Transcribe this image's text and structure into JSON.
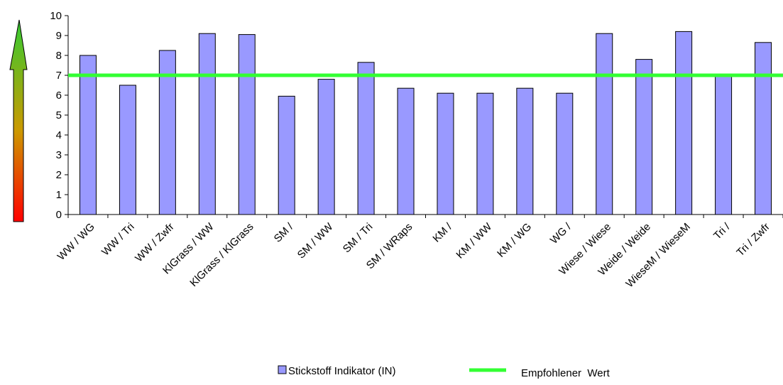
{
  "chart_data": {
    "type": "bar",
    "categories": [
      "WW / WG",
      "WW / Tri",
      "WW / Zwfr",
      "KlGrass / WW",
      "KlGrass / KlGrass",
      "SM /",
      "SM / WW",
      "SM / Tri",
      "SM / WRaps",
      "KM /",
      "KM / WW",
      "KM / WG",
      "WG /",
      "Wiese / Wiese",
      "Weide / Weide",
      "WieseM / WieseM",
      "Tri /",
      "Tri / Zwfr"
    ],
    "series": [
      {
        "name": "Stickstoff Indikator (IN)",
        "values": [
          8.0,
          6.5,
          8.25,
          9.1,
          9.05,
          5.95,
          6.8,
          7.65,
          6.35,
          6.1,
          6.1,
          6.35,
          6.1,
          9.1,
          7.8,
          9.2,
          7.0,
          8.65
        ],
        "color": "#9999ff"
      }
    ],
    "reference_line": {
      "name": "Empfohlener  Wert",
      "value": 7,
      "color": "#33ff33"
    },
    "ylim": [
      0,
      10
    ],
    "yticks": [
      "0",
      "1",
      "2",
      "3",
      "4",
      "5",
      "6",
      "7",
      "8",
      "9",
      "10"
    ],
    "grid": false,
    "legend_position": "bottom",
    "xlabel": "",
    "ylabel": "",
    "title": "",
    "indicator_arrow": {
      "top_color": "#33cc33",
      "middle_color": "#cc9900",
      "bottom_color": "#ff0000"
    }
  }
}
